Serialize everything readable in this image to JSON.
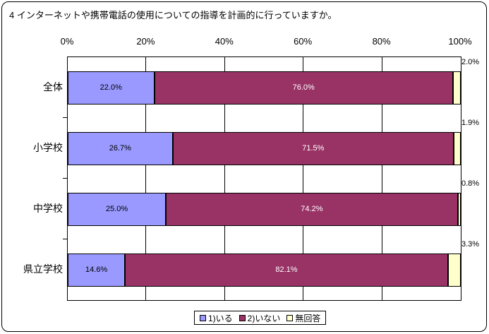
{
  "title": "4 インターネットや携帯電話の使用についての指導を計画的に行っていますか。",
  "chart_data": {
    "type": "bar",
    "stacked": true,
    "orientation": "horizontal",
    "title": "4 インターネットや携帯電話の使用についての指導を計画的に行っていますか。",
    "categories": [
      "全体",
      "小学校",
      "中学校",
      "県立学校"
    ],
    "series": [
      {
        "name": "1)いる",
        "color": "#9999FF",
        "label_color": "#000000",
        "label_position": "inside",
        "values": [
          22.0,
          26.7,
          25.0,
          14.6
        ]
      },
      {
        "name": "2)いない",
        "color": "#993366",
        "label_color": "#FFFFFF",
        "label_position": "inside",
        "values": [
          76.0,
          71.5,
          74.2,
          82.1
        ]
      },
      {
        "name": "無回答",
        "color": "#FFFFCC",
        "label_color": "#000000",
        "label_position": "outside-right",
        "values": [
          2.0,
          1.9,
          0.8,
          3.3
        ]
      }
    ],
    "x_ticks": [
      "0%",
      "20%",
      "40%",
      "60%",
      "80%",
      "100%"
    ],
    "xlim": [
      0,
      100
    ],
    "grid": "vertical",
    "legend_position": "bottom",
    "plot_background": "#FFFFFF",
    "border_color": "#000000"
  }
}
